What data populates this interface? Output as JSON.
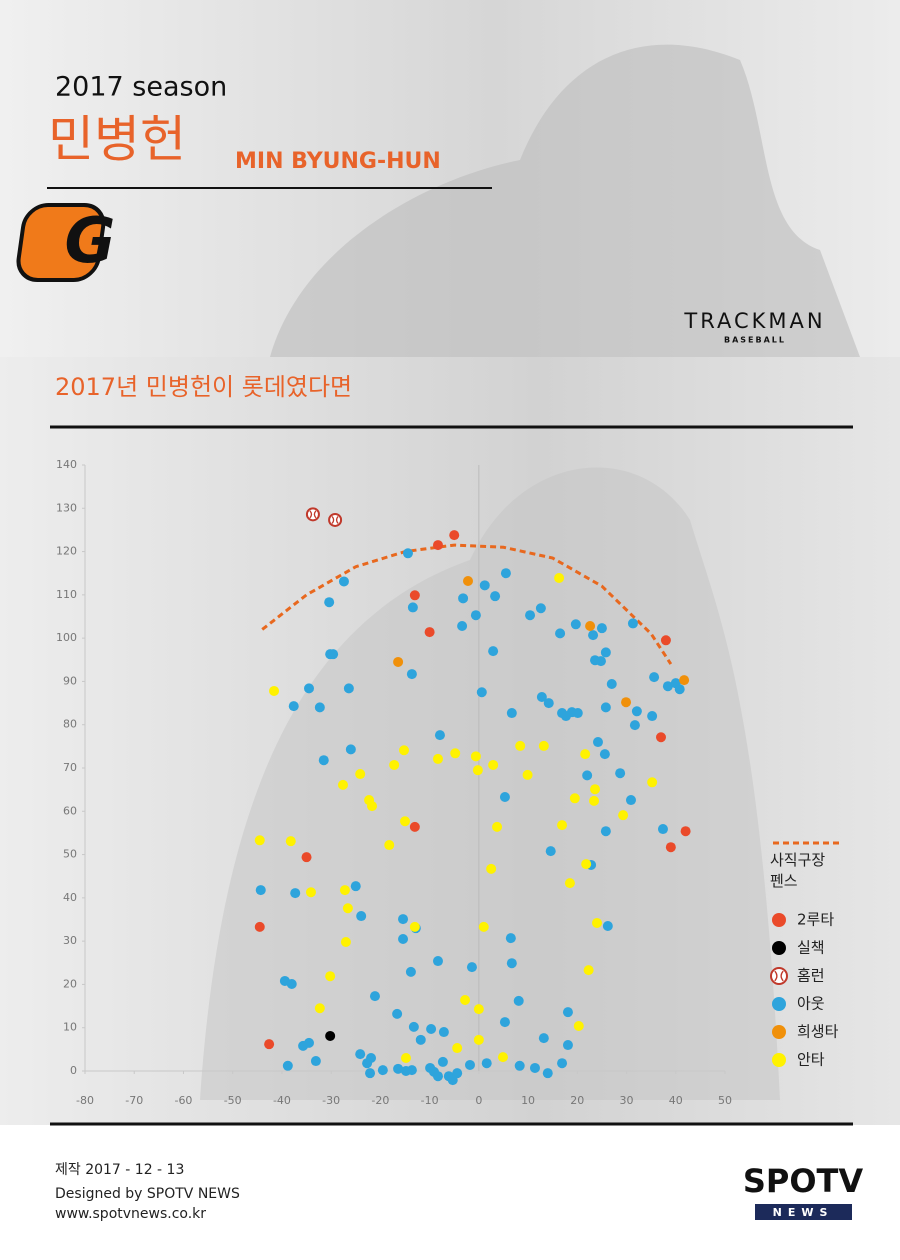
{
  "header": {
    "season": "2017 season",
    "name_kr": "민병헌",
    "name_en": "MIN BYUNG-HUN",
    "team_logo": "G",
    "trackman": "TRACKMAN",
    "trackman_sub": "BASEBALL"
  },
  "chart_data": {
    "type": "scatter",
    "title": "2017년 민병헌이 롯데였다면",
    "xlim": [
      -80,
      50
    ],
    "ylim": [
      0,
      140
    ],
    "xticks": [
      -80,
      -70,
      -60,
      -50,
      -40,
      -30,
      -20,
      -10,
      0,
      10,
      20,
      30,
      40,
      50
    ],
    "yticks": [
      0,
      10,
      20,
      30,
      40,
      50,
      60,
      70,
      80,
      90,
      100,
      110,
      120,
      130,
      140
    ],
    "fence": {
      "name": "사직구장 펜스",
      "color": "#e8681e",
      "x": [
        -44,
        -35,
        -25,
        -15,
        -5,
        5,
        15,
        25,
        35,
        39
      ],
      "y": [
        102,
        110,
        116.5,
        120,
        121.5,
        121,
        118.5,
        112,
        101,
        94
      ]
    },
    "series": [
      {
        "name": "2루타",
        "color": "#ea4a2a",
        "marker": "circle",
        "x": [
          -8.3,
          -5,
          -13,
          -10,
          38,
          37,
          42,
          39,
          -13,
          -35,
          -44.5,
          -42.6
        ],
        "y": [
          121.5,
          123.8,
          109.9,
          101.4,
          99.5,
          77.1,
          55.4,
          51.7,
          56.4,
          49.4,
          33.3,
          6.2
        ]
      },
      {
        "name": "실책",
        "color": "#000000",
        "marker": "circle",
        "x": [
          -30.2
        ],
        "y": [
          8.1
        ]
      },
      {
        "name": "홈런",
        "color": "#c0392b",
        "marker": "ball",
        "x": [
          -33.7,
          -29.2
        ],
        "y": [
          128.6,
          127.3
        ]
      },
      {
        "name": "아웃",
        "color": "#2ea4dc",
        "marker": "circle",
        "x": [
          -14.4,
          -27.4,
          -30.4,
          -30.2,
          -29.6,
          -13.4,
          -3.2,
          -0.6,
          1.2,
          3.3,
          5.5,
          -3.4,
          2.9,
          10.4,
          12.6,
          16.5,
          19.7,
          23.2,
          25,
          23.6,
          24.8,
          25.8,
          31.3,
          27,
          -26.4,
          -34.5,
          -37.6,
          -32.3,
          -13.6,
          0.6,
          6.7,
          12.8,
          14.2,
          16.9,
          17.7,
          18.9,
          20.1,
          25.8,
          32.1,
          35.2,
          31.7,
          38.4,
          35.6,
          40,
          40.8,
          -7.9,
          -26,
          -31.5,
          24.2,
          25.6,
          22,
          28.7,
          30.9,
          5.3,
          25.8,
          37.4,
          14.6,
          22.8,
          26.2,
          -25,
          -23.9,
          -15.4,
          -15.4,
          -12.8,
          6.5,
          6.7,
          -1.4,
          -8.3,
          -13.8,
          -39.4,
          -38,
          -21.1,
          8.1,
          18.1,
          13.2,
          5.3,
          -16.6,
          -13.2,
          -9.7,
          -7.1,
          -11.8,
          -35.7,
          -34.5,
          -33.1,
          -24.1,
          -22.7,
          -21.9,
          -22.1,
          -19.5,
          -16.4,
          -14.8,
          -13.6,
          -9.9,
          -9.1,
          -8.3,
          -7.3,
          -6.1,
          -5.3,
          -4.4,
          -1.8,
          1.6,
          8.3,
          11.4,
          14,
          16.9,
          18.1,
          -38.8,
          -44.3,
          -37.3
        ],
        "y": [
          119.6,
          113.1,
          108.3,
          96.3,
          96.3,
          107.1,
          109.2,
          105.3,
          112.2,
          109.7,
          115,
          102.8,
          97,
          105.3,
          106.9,
          101.1,
          103.2,
          100.7,
          102.3,
          94.9,
          94.7,
          96.7,
          103.4,
          89.4,
          88.4,
          88.4,
          84.3,
          84,
          91.7,
          87.5,
          82.7,
          86.4,
          85,
          82.7,
          82,
          82.9,
          82.7,
          84,
          83.1,
          82,
          79.9,
          88.9,
          91,
          89.6,
          88.2,
          77.6,
          74.3,
          71.8,
          76,
          73.2,
          68.3,
          68.8,
          62.6,
          63.3,
          55.4,
          55.9,
          50.8,
          47.6,
          33.5,
          42.7,
          35.8,
          35.1,
          30.5,
          33,
          30.7,
          24.9,
          24,
          25.4,
          22.9,
          20.8,
          20.1,
          17.3,
          16.2,
          13.6,
          7.6,
          11.3,
          13.2,
          10.2,
          9.7,
          9,
          7.2,
          5.8,
          6.5,
          2.3,
          3.9,
          1.8,
          3,
          -0.5,
          0.2,
          0.5,
          0,
          0.2,
          0.7,
          -0.2,
          -1.2,
          2.1,
          -1.2,
          -2.1,
          -0.5,
          1.4,
          1.8,
          1.2,
          0.7,
          -0.5,
          1.8,
          6,
          1.2,
          41.8,
          41.1
        ]
      },
      {
        "name": "희생타",
        "color": "#f0900a",
        "marker": "circle",
        "x": [
          -2.2,
          -16.4,
          22.6,
          29.9,
          41.7
        ],
        "y": [
          113.2,
          94.5,
          102.8,
          85.2,
          90.3
        ]
      },
      {
        "name": "안타",
        "color": "#fff200",
        "marker": "circle",
        "x": [
          16.3,
          -41.6,
          -0.6,
          -4.8,
          -8.3,
          2.9,
          -0.2,
          8.4,
          13.2,
          9.9,
          -15.2,
          -17.2,
          -24.1,
          -27.6,
          -22.3,
          -21.7,
          -15,
          -18.2,
          -38.2,
          -44.5,
          -34.1,
          -27.2,
          -26.6,
          -27,
          -13,
          -30.2,
          -32.3,
          3.7,
          2.5,
          1,
          16.9,
          19.5,
          21.6,
          23.6,
          23.4,
          29.3,
          35.2,
          21.8,
          18.5,
          24,
          22.3,
          20.3,
          -2.8,
          0,
          -4.4,
          0,
          4.9,
          -14.8
        ],
        "y": [
          113.9,
          87.8,
          72.7,
          73.4,
          72.1,
          70.7,
          69.5,
          75.1,
          75.1,
          68.4,
          74.1,
          70.7,
          68.6,
          66.1,
          62.6,
          61.2,
          57.7,
          52.2,
          53.1,
          53.3,
          41.3,
          41.8,
          37.6,
          29.8,
          33.3,
          21.9,
          14.5,
          56.4,
          46.7,
          33.3,
          56.8,
          63,
          73.2,
          65.1,
          62.4,
          59.1,
          66.7,
          47.8,
          43.4,
          34.2,
          23.3,
          10.4,
          16.4,
          14.3,
          5.3,
          7.2,
          3.2,
          3
        ]
      }
    ]
  },
  "footer": {
    "made": "제작 2017 - 12 - 13",
    "designed": "Designed by SPOTV NEWS",
    "url": "www.spotvnews.co.kr",
    "logo_top": "SPOTV",
    "logo_bottom": "NEWS"
  }
}
